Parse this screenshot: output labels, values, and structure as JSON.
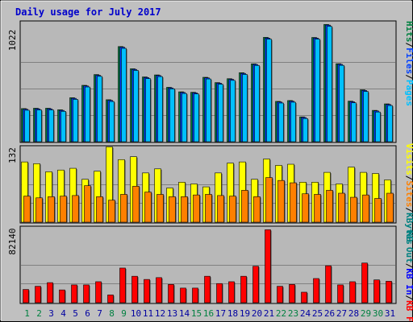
{
  "title": "Daily usage for July 2017",
  "colors": {
    "background": "#c0c0c0",
    "plot": "#b8b8b8",
    "title": "#0000cc",
    "hits": "#008040",
    "files": "#0040ff",
    "pages": "#00c0ff",
    "visits": "#ffff00",
    "sites": "#ff8000",
    "kbin": "#008080",
    "kbout": "#0000ff",
    "kbf": "#ff0000",
    "weekend_day": "#008040",
    "weekday": "#0000a0"
  },
  "chart_data": [
    {
      "type": "bar",
      "panel": "top",
      "ymax_label": "1022",
      "ylim": [
        0,
        1022
      ],
      "legend": [
        "Pages",
        "Files",
        "Hits"
      ],
      "categories": [
        "1",
        "2",
        "3",
        "4",
        "5",
        "6",
        "7",
        "8",
        "9",
        "10",
        "11",
        "12",
        "13",
        "14",
        "15",
        "16",
        "17",
        "18",
        "19",
        "20",
        "21",
        "22",
        "23",
        "24",
        "25",
        "26",
        "27",
        "28",
        "29",
        "30",
        "31"
      ],
      "series": [
        {
          "name": "Hits",
          "values": [
            280,
            283,
            283,
            270,
            372,
            477,
            568,
            355,
            805,
            617,
            548,
            565,
            460,
            422,
            418,
            545,
            500,
            533,
            584,
            659,
            883,
            341,
            348,
            210,
            882,
            992,
            660,
            343,
            439,
            265,
            320
          ]
        },
        {
          "name": "Files",
          "values": [
            275,
            278,
            278,
            265,
            367,
            472,
            562,
            350,
            800,
            612,
            543,
            560,
            455,
            417,
            413,
            540,
            495,
            528,
            578,
            654,
            877,
            336,
            343,
            205,
            877,
            987,
            655,
            338,
            434,
            260,
            315
          ]
        },
        {
          "name": "Pages",
          "values": [
            266,
            269,
            269,
            257,
            358,
            463,
            553,
            340,
            790,
            603,
            534,
            551,
            447,
            408,
            404,
            531,
            486,
            519,
            569,
            645,
            868,
            327,
            334,
            196,
            868,
            976,
            646,
            329,
            425,
            251,
            306
          ]
        }
      ]
    },
    {
      "type": "bar",
      "panel": "middle",
      "ymax_label": "132",
      "ylim": [
        0,
        132
      ],
      "legend": [
        "Visits",
        "Sites",
        "KBytes"
      ],
      "categories": [
        "1",
        "2",
        "3",
        "4",
        "5",
        "6",
        "7",
        "8",
        "9",
        "10",
        "11",
        "12",
        "13",
        "14",
        "15",
        "16",
        "17",
        "18",
        "19",
        "20",
        "21",
        "22",
        "23",
        "24",
        "25",
        "26",
        "27",
        "28",
        "29",
        "30",
        "31"
      ],
      "series": [
        {
          "name": "Visits",
          "values": [
            104,
            101,
            87,
            90,
            93,
            74,
            88,
            130,
            108,
            113,
            85,
            92,
            59,
            69,
            66,
            61,
            85,
            102,
            104,
            74,
            109,
            98,
            100,
            69,
            69,
            86,
            66,
            95,
            86,
            84,
            73
          ]
        },
        {
          "name": "Sites",
          "values": [
            45,
            42,
            44,
            45,
            46,
            63,
            44,
            38,
            48,
            62,
            52,
            48,
            44,
            44,
            47,
            48,
            46,
            45,
            55,
            44,
            77,
            72,
            68,
            49,
            48,
            55,
            50,
            43,
            47,
            41,
            50
          ]
        }
      ]
    },
    {
      "type": "bar",
      "panel": "bottom",
      "ymax_label": "82140",
      "ylim": [
        0,
        82140
      ],
      "legend": [
        "KB F",
        "KB In",
        "KB Out"
      ],
      "categories": [
        "1",
        "2",
        "3",
        "4",
        "5",
        "6",
        "7",
        "8",
        "9",
        "10",
        "11",
        "12",
        "13",
        "14",
        "15",
        "16",
        "17",
        "18",
        "19",
        "20",
        "21",
        "22",
        "23",
        "24",
        "25",
        "26",
        "27",
        "28",
        "29",
        "30",
        "31"
      ],
      "series": [
        {
          "name": "KB F",
          "values": [
            14500,
            18000,
            22000,
            14000,
            19500,
            19500,
            23000,
            8500,
            38000,
            29000,
            25500,
            27500,
            20000,
            16000,
            16000,
            29000,
            21000,
            23000,
            29000,
            40000,
            80000,
            18000,
            20000,
            11500,
            26500,
            40500,
            19500,
            23000,
            43500,
            25000,
            23500
          ]
        }
      ]
    }
  ],
  "day_labels": [
    "1",
    "2",
    "3",
    "4",
    "5",
    "6",
    "7",
    "8",
    "9",
    "10",
    "11",
    "12",
    "13",
    "14",
    "15",
    "16",
    "17",
    "18",
    "19",
    "20",
    "21",
    "22",
    "23",
    "24",
    "25",
    "26",
    "27",
    "28",
    "29",
    "30",
    "31"
  ],
  "weekend_days": [
    "1",
    "2",
    "8",
    "9",
    "15",
    "16",
    "22",
    "23",
    "29",
    "30"
  ]
}
